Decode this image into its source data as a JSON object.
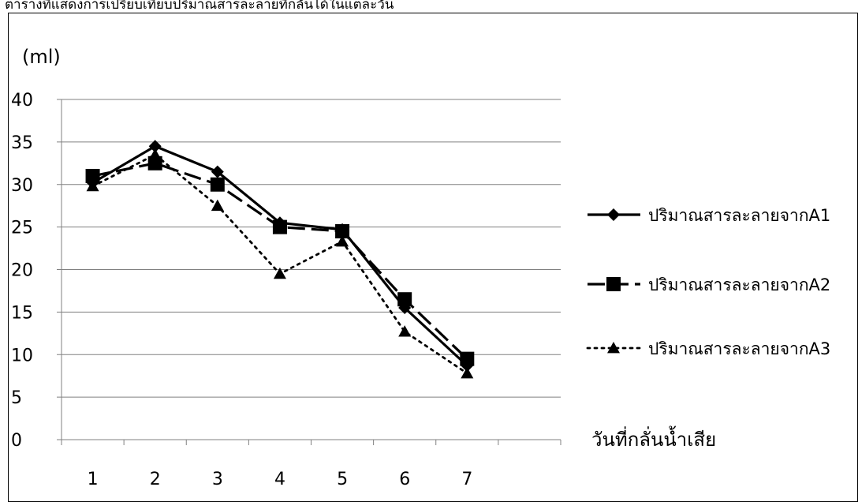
{
  "caption": "ตารางที่แสดงการเปรียบเทียบปริมาณสารละลายที่กลั่นได้ในแต่ละวัน",
  "chart_data": {
    "type": "line",
    "y_unit_label": "(ml)",
    "x_axis_label": "วันที่กลั่นน้ำเสีย",
    "categories": [
      "1",
      "2",
      "3",
      "4",
      "5",
      "6",
      "7"
    ],
    "y_ticks": [
      "0",
      "5",
      "10",
      "15",
      "20",
      "25",
      "30",
      "35",
      "40"
    ],
    "ylim": [
      0,
      40
    ],
    "grid": "horizontal",
    "legend_position": "right",
    "series": [
      {
        "name": "ปริมาณสารละลายจากA1",
        "values": [
          30.2,
          34.5,
          31.5,
          25.5,
          24.7,
          15.5,
          8.7
        ],
        "line_style": "solid",
        "marker": "diamond",
        "color": "#000000"
      },
      {
        "name": "ปริมาณสารละลายจากA2",
        "values": [
          31,
          32.5,
          30,
          25,
          24.5,
          16.5,
          9.5
        ],
        "line_style": "dashed",
        "marker": "square",
        "color": "#000000"
      },
      {
        "name": "ปริมาณสารละลายจากA3",
        "values": [
          29.8,
          33.5,
          27.5,
          19.5,
          23.3,
          12.7,
          7.8
        ],
        "line_style": "dotted",
        "marker": "triangle",
        "color": "#000000"
      }
    ]
  }
}
